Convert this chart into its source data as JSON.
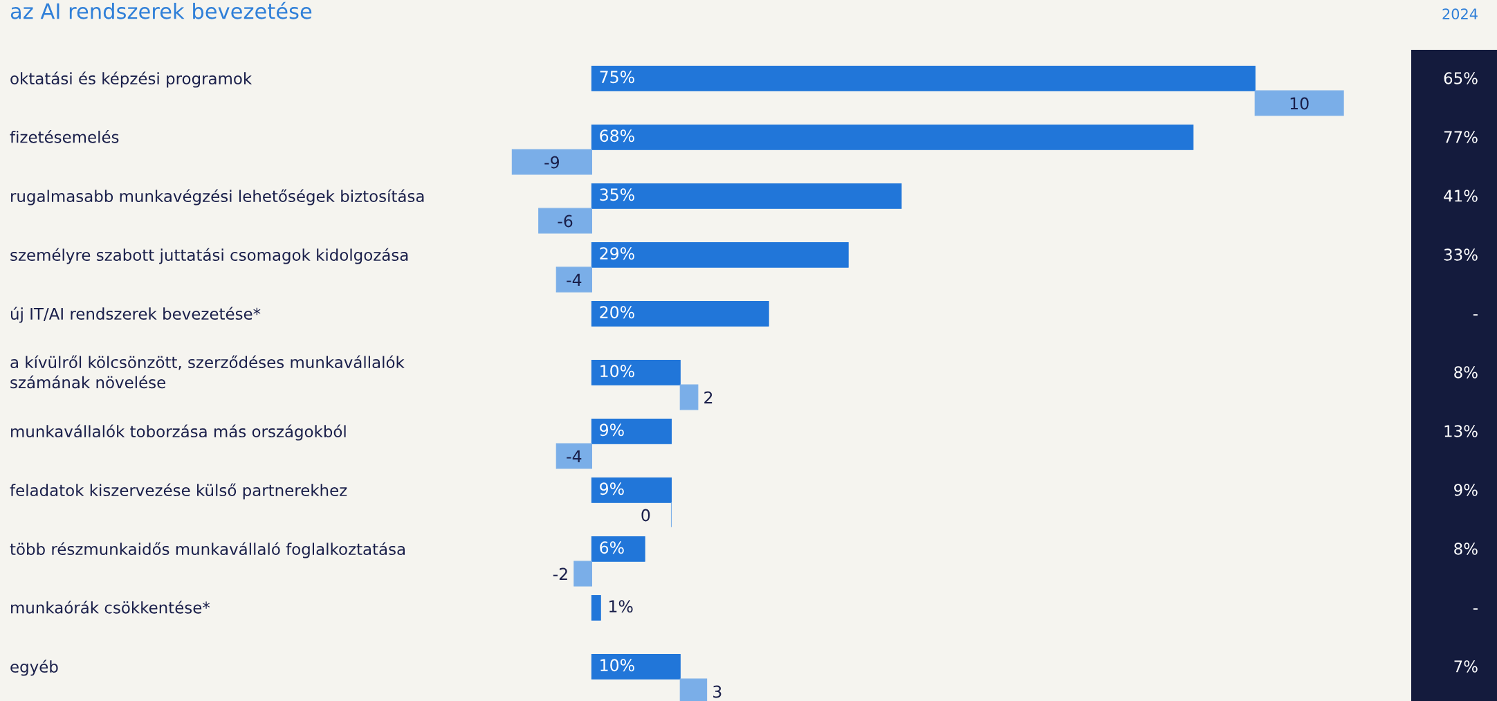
{
  "chart_data": {
    "type": "bar",
    "orientation": "horizontal",
    "stacked": true,
    "title": "az AI rendszerek bevezetése",
    "categories": [
      "oktatási és képzési programok",
      "fizetésemelés",
      "rugalmasabb munkavégzési lehetőségek biztosítása",
      "személyre szabott juttatási csomagok kidolgozása",
      "új IT/AI rendszerek bevezetése*",
      "a kívülről kölcsönzött, szerződéses munkavállalók\nszámának növelése",
      "munkavállalók toborzása más országokból",
      "feladatok kiszervezése külső partnerekhez",
      "több részmunkaidős munkavállaló foglalkoztatása",
      "munkaórák csökkentése*",
      "egyéb"
    ],
    "series": [
      {
        "color": "#2176d9",
        "values": [
          75,
          68,
          35,
          29,
          20,
          10,
          9,
          9,
          6,
          1,
          10
        ],
        "value_labels": [
          "75%",
          "68%",
          "35%",
          "29%",
          "20%",
          "10%",
          "9%",
          "9%",
          "6%",
          "1%",
          "10%"
        ]
      },
      {
        "color": "#7aaee8",
        "values": [
          10,
          -9,
          -6,
          -4,
          null,
          2,
          -4,
          0,
          -2,
          null,
          3
        ],
        "value_labels": [
          "10",
          "-9",
          "-6",
          "-4",
          null,
          "2",
          "-4",
          "0",
          "-2",
          null,
          "3"
        ]
      }
    ],
    "annotations": [
      "2024",
      "65%",
      "77%",
      "41%",
      "33%",
      "-",
      "8%",
      "13%",
      "9%",
      "8%",
      "-",
      "7%"
    ]
  }
}
